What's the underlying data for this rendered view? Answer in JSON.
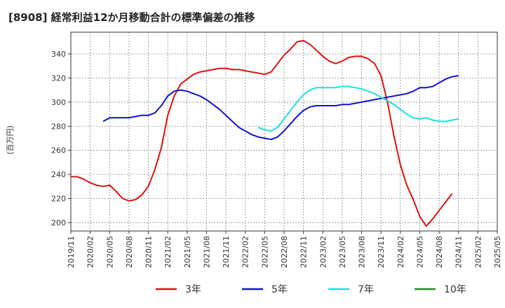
{
  "chart_data": {
    "type": "line",
    "title": "[8908]  経常利益12か月移動合計の標準偏差の推移",
    "xlabel": "",
    "ylabel": "(百万円)",
    "ylim": [
      193,
      358
    ],
    "yticks": [
      200,
      220,
      240,
      260,
      280,
      300,
      320,
      340
    ],
    "xticks": [
      "2019/11",
      "2020/02",
      "2020/05",
      "2020/08",
      "2020/11",
      "2021/02",
      "2021/05",
      "2021/08",
      "2021/11",
      "2022/02",
      "2022/05",
      "2022/08",
      "2022/11",
      "2023/02",
      "2023/05",
      "2023/08",
      "2023/11",
      "2024/02",
      "2024/05",
      "2024/08",
      "2024/11",
      "2025/02",
      "2025/05"
    ],
    "grid": true,
    "legend_position": "bottom",
    "series": [
      {
        "name": "3年",
        "color": "#dd1111",
        "start": "2019/11",
        "values": [
          238,
          238,
          236,
          233,
          231,
          230,
          231,
          226,
          220,
          218,
          219,
          223,
          230,
          244,
          262,
          289,
          305,
          315,
          319,
          323,
          325,
          326,
          327,
          328,
          328,
          327,
          327,
          326,
          325,
          324,
          323,
          325,
          332,
          339,
          344,
          350,
          351,
          348,
          343,
          338,
          334,
          332,
          334,
          337,
          338,
          338,
          336,
          332,
          322,
          300,
          272,
          248,
          231,
          219,
          205,
          197,
          203,
          210,
          217,
          224
        ]
      },
      {
        "name": "5年",
        "color": "#1111cc",
        "start": "2020/04",
        "values": [
          284,
          287,
          287,
          287,
          287,
          288,
          289,
          289,
          291,
          297,
          305,
          309,
          310,
          309,
          307,
          305,
          302,
          298,
          294,
          289,
          284,
          279,
          276,
          273,
          271,
          270,
          269,
          271,
          276,
          282,
          288,
          293,
          296,
          297,
          297,
          297,
          297,
          298,
          298,
          299,
          300,
          301,
          302,
          303,
          304,
          305,
          306,
          307,
          309,
          312,
          312,
          313,
          316,
          319,
          321,
          322
        ]
      },
      {
        "name": "7年",
        "color": "#22dddd",
        "start": "2022/04",
        "values": [
          279,
          277,
          276,
          279,
          286,
          293,
          300,
          306,
          310,
          312,
          312,
          312,
          312,
          313,
          313,
          312,
          311,
          309,
          307,
          304,
          301,
          298,
          294,
          290,
          287,
          286,
          287,
          285,
          284,
          284,
          285,
          286
        ]
      },
      {
        "name": "10年",
        "color": "#228822",
        "start": "2019/11",
        "values": []
      }
    ]
  }
}
